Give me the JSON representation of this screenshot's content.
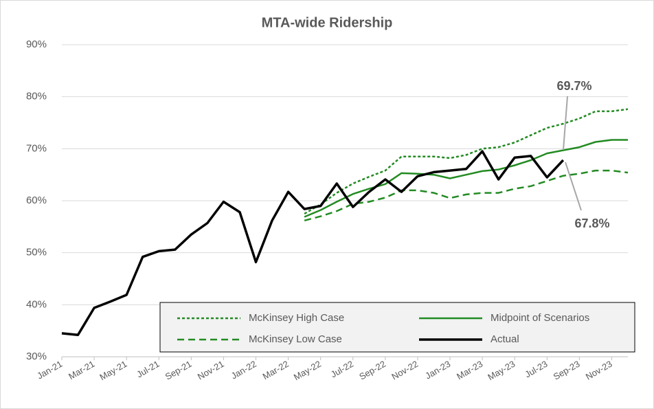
{
  "chart_data": {
    "type": "line",
    "title": "MTA-wide Ridership",
    "categories": [
      "Jan-21",
      null,
      "Mar-21",
      null,
      "May-21",
      null,
      "Jul-21",
      null,
      "Sep-21",
      null,
      "Nov-21",
      null,
      "Jan-22",
      null,
      "Mar-22",
      null,
      "May-22",
      null,
      "Jul-22",
      null,
      "Sep-22",
      null,
      "Nov-22",
      null,
      "Jan-23",
      null,
      "Mar-23",
      null,
      "May-23",
      null,
      "Jul-23",
      null,
      "Sep-23",
      null,
      "Nov-23",
      null
    ],
    "series": [
      {
        "name": "McKinsey High Case",
        "color": "#228b22",
        "dash": "dotted",
        "values": [
          null,
          null,
          null,
          null,
          null,
          null,
          null,
          null,
          null,
          null,
          null,
          null,
          null,
          null,
          null,
          57.5,
          59.3,
          61.5,
          63.3,
          64.6,
          65.8,
          68.5,
          68.5,
          68.5,
          68.2,
          68.8,
          70.0,
          70.3,
          71.2,
          72.6,
          74.0,
          74.8,
          75.8,
          77.2,
          77.2,
          77.6
        ]
      },
      {
        "name": "McKinsey Low Case",
        "color": "#228b22",
        "dash": "dashed",
        "values": [
          null,
          null,
          null,
          null,
          null,
          null,
          null,
          null,
          null,
          null,
          null,
          null,
          null,
          null,
          null,
          56.2,
          57.0,
          58.0,
          59.4,
          59.8,
          60.6,
          62.0,
          62.0,
          61.5,
          60.5,
          61.2,
          61.5,
          61.5,
          62.3,
          62.8,
          63.8,
          64.8,
          65.2,
          65.8,
          65.8,
          65.4
        ]
      },
      {
        "name": "Midpoint of Scenarios",
        "color": "#228b22",
        "dash": "solid",
        "values": [
          null,
          null,
          null,
          null,
          null,
          null,
          null,
          null,
          null,
          null,
          null,
          null,
          null,
          null,
          null,
          56.9,
          58.2,
          59.8,
          61.3,
          62.3,
          63.2,
          65.3,
          65.2,
          65.0,
          64.3,
          65.0,
          65.7,
          66.0,
          66.8,
          67.8,
          69.1,
          69.7,
          70.3,
          71.3,
          71.7,
          71.7
        ]
      },
      {
        "name": "Actual",
        "color": "#000000",
        "dash": "solid",
        "values": [
          34.5,
          34.2,
          39.4,
          40.6,
          41.9,
          49.2,
          50.3,
          50.6,
          53.5,
          55.7,
          59.8,
          57.8,
          48.2,
          56.2,
          61.7,
          58.4,
          59.0,
          63.3,
          58.8,
          61.7,
          64.1,
          61.7,
          64.7,
          65.5,
          65.8,
          66.1,
          69.5,
          64.1,
          68.3,
          68.6,
          64.5,
          67.8,
          null,
          null,
          null,
          null
        ]
      }
    ],
    "annotations": [
      "69.7%",
      "67.8%"
    ],
    "ylim": [
      30,
      90
    ],
    "yticks": [
      {
        "value": 30,
        "label": "30%"
      },
      {
        "value": 40,
        "label": "40%"
      },
      {
        "value": 50,
        "label": "50%"
      },
      {
        "value": 60,
        "label": "60%"
      },
      {
        "value": 70,
        "label": "70%"
      },
      {
        "value": 80,
        "label": "80%"
      },
      {
        "value": 90,
        "label": "90%"
      }
    ],
    "grid": true,
    "legend": "bottom-right"
  }
}
